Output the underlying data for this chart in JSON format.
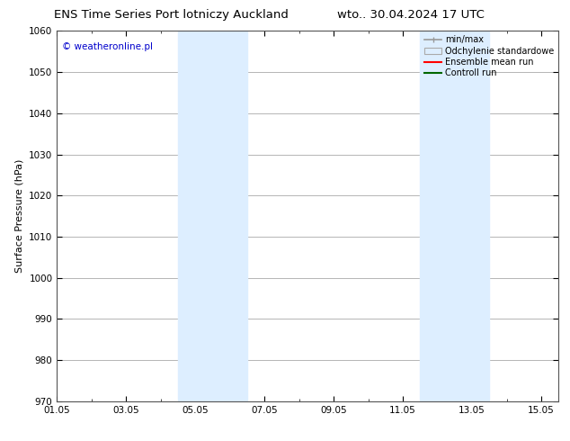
{
  "title_left": "ENS Time Series Port lotniczy Auckland",
  "title_right": "wto.. 30.04.2024 17 UTC",
  "ylabel": "Surface Pressure (hPa)",
  "watermark": "© weatheronline.pl",
  "watermark_color": "#0000cc",
  "xlim_left": 0.0,
  "xlim_right": 14.5,
  "ylim_bottom": 970,
  "ylim_top": 1060,
  "yticks": [
    970,
    980,
    990,
    1000,
    1010,
    1020,
    1030,
    1040,
    1050,
    1060
  ],
  "xtick_labels": [
    "01.05",
    "03.05",
    "05.05",
    "07.05",
    "09.05",
    "11.05",
    "13.05",
    "15.05"
  ],
  "xtick_positions": [
    0,
    2,
    4,
    6,
    8,
    10,
    12,
    14
  ],
  "shaded_bands": [
    {
      "x_start": 3.5,
      "x_end": 5.5,
      "color": "#ddeeff"
    },
    {
      "x_start": 10.5,
      "x_end": 12.5,
      "color": "#ddeeff"
    }
  ],
  "background_color": "#ffffff",
  "grid_color": "#999999",
  "title_fontsize": 9.5,
  "tick_fontsize": 7.5,
  "ylabel_fontsize": 8,
  "legend_fontsize": 7,
  "watermark_fontsize": 7.5
}
